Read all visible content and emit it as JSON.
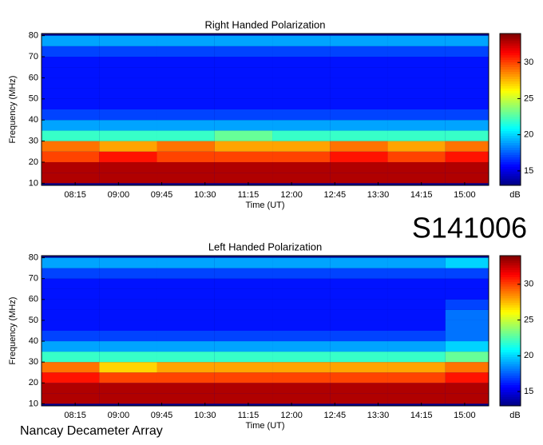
{
  "chart_data": [
    {
      "type": "heatmap",
      "title": "Right Handed Polarization",
      "xlabel": "Time (UT)",
      "ylabel": "Frequency (MHz)",
      "x_bins": [
        "07:40",
        "08:40",
        "09:40",
        "10:40",
        "11:40",
        "12:40",
        "13:40",
        "14:40",
        "15:25"
      ],
      "y_bins": [
        10,
        15,
        20,
        25,
        30,
        35,
        40,
        45,
        50,
        55,
        60,
        65,
        70,
        75,
        80
      ],
      "z": [
        [
          33,
          33,
          33,
          33,
          33,
          33,
          33,
          33
        ],
        [
          33,
          33,
          33,
          33,
          33,
          33,
          33,
          33
        ],
        [
          30,
          31,
          30,
          30,
          30,
          31,
          30,
          31
        ],
        [
          29,
          28,
          29,
          28,
          28,
          29,
          28,
          29
        ],
        [
          22,
          22,
          22,
          23,
          22,
          22,
          22,
          22
        ],
        [
          19,
          19,
          19,
          19,
          19,
          19,
          19,
          19
        ],
        [
          17,
          17,
          17,
          17,
          17,
          17,
          17,
          17
        ],
        [
          16,
          16,
          16,
          16,
          16,
          16,
          16,
          16
        ],
        [
          16,
          16,
          16,
          16,
          16,
          16,
          16,
          16
        ],
        [
          16,
          16,
          16,
          16,
          16,
          16,
          16,
          16
        ],
        [
          16,
          16,
          16,
          16,
          16,
          16,
          16,
          16
        ],
        [
          16,
          16,
          16,
          16,
          16,
          16,
          16,
          16
        ],
        [
          17,
          17,
          17,
          17,
          17,
          17,
          17,
          17
        ],
        [
          19,
          19,
          19,
          19,
          19,
          19,
          19,
          19
        ]
      ],
      "xlim": [
        "07:40",
        "15:25"
      ],
      "xticks": [
        "08:15",
        "09:00",
        "09:45",
        "10:30",
        "11:15",
        "12:00",
        "12:45",
        "13:30",
        "14:15",
        "15:00"
      ],
      "ylim": [
        9,
        81
      ],
      "yticks": [
        10,
        20,
        30,
        40,
        50,
        60,
        70,
        80
      ],
      "clim": [
        13,
        34
      ],
      "cticks": [
        15,
        20,
        25,
        30
      ],
      "clabel": "dB"
    },
    {
      "type": "heatmap",
      "title": "Left Handed Polarization",
      "xlabel": "Time (UT)",
      "ylabel": "Frequency (MHz)",
      "x_bins": [
        "07:40",
        "08:40",
        "09:40",
        "10:40",
        "11:40",
        "12:40",
        "13:40",
        "14:40",
        "15:25"
      ],
      "y_bins": [
        10,
        15,
        20,
        25,
        30,
        35,
        40,
        45,
        50,
        55,
        60,
        65,
        70,
        75,
        80
      ],
      "z": [
        [
          33,
          33,
          33,
          33,
          33,
          33,
          33,
          33
        ],
        [
          33,
          33,
          33,
          33,
          33,
          33,
          33,
          33
        ],
        [
          31,
          30,
          30,
          30,
          30,
          30,
          30,
          31
        ],
        [
          29,
          27,
          28,
          28,
          28,
          28,
          28,
          29
        ],
        [
          22,
          22,
          22,
          22,
          22,
          22,
          22,
          23
        ],
        [
          19,
          19,
          19,
          19,
          19,
          19,
          19,
          20
        ],
        [
          17,
          17,
          17,
          17,
          17,
          17,
          17,
          18
        ],
        [
          16,
          16,
          16,
          16,
          16,
          16,
          16,
          18
        ],
        [
          16,
          16,
          16,
          16,
          16,
          16,
          16,
          18
        ],
        [
          16,
          16,
          16,
          16,
          16,
          16,
          16,
          17
        ],
        [
          16,
          16,
          16,
          16,
          16,
          16,
          16,
          16
        ],
        [
          16,
          16,
          16,
          16,
          16,
          16,
          16,
          16
        ],
        [
          17,
          17,
          17,
          17,
          17,
          17,
          17,
          17
        ],
        [
          19,
          19,
          19,
          19,
          19,
          19,
          19,
          20
        ]
      ],
      "xlim": [
        "07:40",
        "15:25"
      ],
      "xticks": [
        "08:15",
        "09:00",
        "09:45",
        "10:30",
        "11:15",
        "12:00",
        "12:45",
        "13:30",
        "14:15",
        "15:00"
      ],
      "ylim": [
        9,
        81
      ],
      "yticks": [
        10,
        20,
        30,
        40,
        50,
        60,
        70,
        80
      ],
      "clim": [
        13,
        34
      ],
      "cticks": [
        15,
        20,
        25,
        30
      ],
      "clabel": "dB"
    }
  ],
  "event_id": "S141006",
  "observatory": "Nancay Decameter Array"
}
